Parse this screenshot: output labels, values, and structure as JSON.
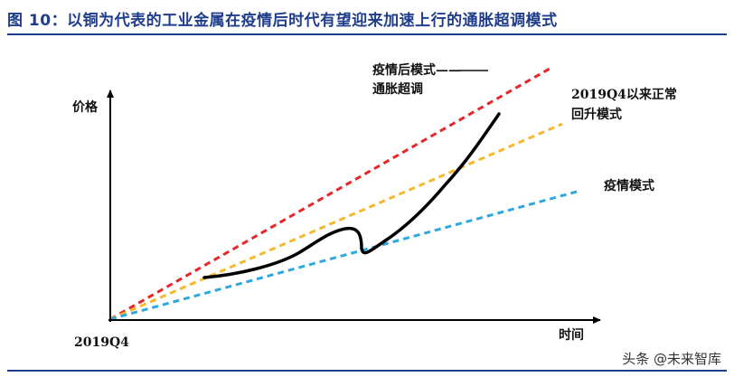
{
  "figure": {
    "title": "图 10：以铜为代表的工业金属在疫情后时代有望迎来加速上行的通胀超调模式"
  },
  "axes": {
    "y_label": "价格",
    "x_label": "时间",
    "origin_label": "2019Q4"
  },
  "annotations": {
    "post_pandemic_line1": "疫情后模式——",
    "post_pandemic_line2": "通胀超调",
    "normal_line1": "2019Q4以来正常",
    "normal_line2": "回升模式",
    "pandemic": "疫情模式"
  },
  "colors": {
    "title": "#1f3d8a",
    "post_pandemic_line": "#e8262a",
    "normal_line": "#f5b82e",
    "pandemic_line": "#2ea8e0",
    "price_curve": "#000000"
  },
  "watermark": {
    "text": "头条 @未来智库"
  }
}
